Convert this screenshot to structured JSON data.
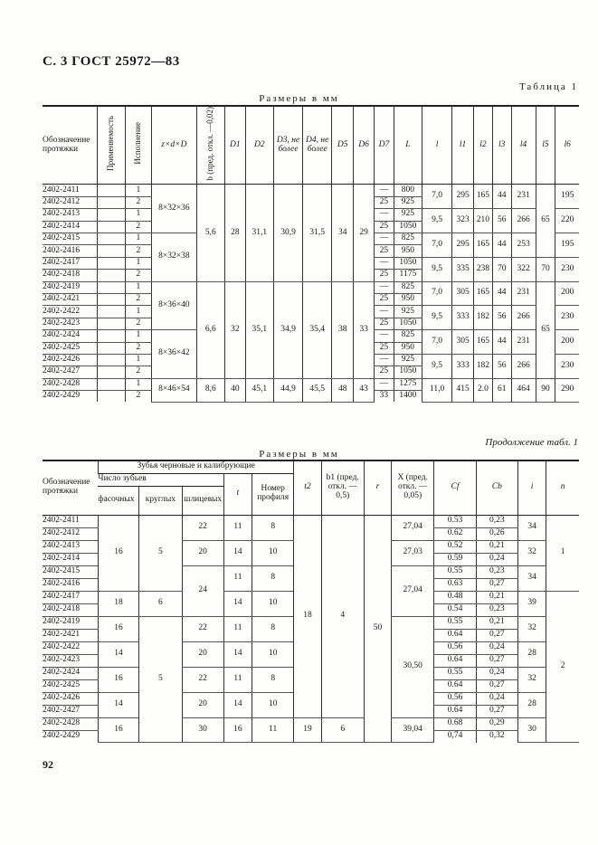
{
  "header": {
    "title": "С. 3 ГОСТ 25972—83",
    "table_label": "Таблица 1",
    "units": "Размеры в мм",
    "continuation": "Продолжение табл. 1",
    "page_number": "92"
  },
  "table1": {
    "headers": [
      "Обозначение протяжки",
      "Применяемость",
      "Исполнение",
      "z×d×D",
      "b (пред. откл. —0,02)",
      "D1",
      "D2",
      "D3, не более",
      "D4, не более",
      "D5",
      "D6",
      "D7",
      "L",
      "l",
      "l1",
      "l2",
      "l3",
      "l4",
      "l5",
      "l6"
    ],
    "columns": [
      [
        [
          "2402-2411",
          1
        ],
        [
          "2402-2412",
          1
        ],
        [
          "2402-2413",
          1
        ],
        [
          "2402-2414",
          1
        ],
        [
          "2402-2415",
          1
        ],
        [
          "2402-2416",
          1
        ],
        [
          "2402-2417",
          1
        ],
        [
          "2402-2418",
          1
        ],
        [
          "2402-2419",
          1
        ],
        [
          "2402-2421",
          1
        ],
        [
          "2402-2422",
          1
        ],
        [
          "2402-2423",
          1
        ],
        [
          "2402-2424",
          1
        ],
        [
          "2402-2425",
          1
        ],
        [
          "2402-2426",
          1
        ],
        [
          "2402-2427",
          1
        ],
        [
          "2402-2428",
          1
        ],
        [
          "2402-2429",
          1
        ]
      ],
      [
        [
          "",
          1
        ],
        [
          "",
          1
        ],
        [
          "",
          1
        ],
        [
          "",
          1
        ],
        [
          "",
          1
        ],
        [
          "",
          1
        ],
        [
          "",
          1
        ],
        [
          "",
          1
        ],
        [
          "",
          1
        ],
        [
          "",
          1
        ],
        [
          "",
          1
        ],
        [
          "",
          1
        ],
        [
          "",
          1
        ],
        [
          "",
          1
        ],
        [
          "",
          1
        ],
        [
          "",
          1
        ],
        [
          "",
          1
        ],
        [
          "",
          1
        ]
      ],
      [
        [
          "1",
          1
        ],
        [
          "2",
          1
        ],
        [
          "1",
          1
        ],
        [
          "2",
          1
        ],
        [
          "1",
          1
        ],
        [
          "2",
          1
        ],
        [
          "1",
          1
        ],
        [
          "2",
          1
        ],
        [
          "1",
          1
        ],
        [
          "2",
          1
        ],
        [
          "1",
          1
        ],
        [
          "2",
          1
        ],
        [
          "1",
          1
        ],
        [
          "2",
          1
        ],
        [
          "1",
          1
        ],
        [
          "2",
          1
        ],
        [
          "1",
          1
        ],
        [
          "2",
          1
        ]
      ],
      [
        [
          "8×32×36",
          4
        ],
        [
          "8×32×38",
          4
        ],
        [
          "8×36×40",
          4
        ],
        [
          "8×36×42",
          4
        ],
        [
          "8×46×54",
          2
        ]
      ],
      [
        [
          "5,6",
          8
        ],
        [
          "6,6",
          8
        ],
        [
          "8,6",
          2
        ]
      ],
      [
        [
          "28",
          8
        ],
        [
          "32",
          8
        ],
        [
          "40",
          2
        ]
      ],
      [
        [
          "31,1",
          8
        ],
        [
          "35,1",
          8
        ],
        [
          "45,1",
          2
        ]
      ],
      [
        [
          "30,9",
          8
        ],
        [
          "34,9",
          8
        ],
        [
          "44,9",
          2
        ]
      ],
      [
        [
          "31,5",
          8
        ],
        [
          "35,4",
          8
        ],
        [
          "45,5",
          2
        ]
      ],
      [
        [
          "34",
          8
        ],
        [
          "38",
          8
        ],
        [
          "48",
          2
        ]
      ],
      [
        [
          "29",
          8
        ],
        [
          "33",
          8
        ],
        [
          "43",
          2
        ]
      ],
      [
        [
          "—",
          1
        ],
        [
          "25",
          1
        ],
        [
          "—",
          1
        ],
        [
          "25",
          1
        ],
        [
          "—",
          1
        ],
        [
          "25",
          1
        ],
        [
          "—",
          1
        ],
        [
          "25",
          1
        ],
        [
          "—",
          1
        ],
        [
          "25",
          1
        ],
        [
          "—",
          1
        ],
        [
          "25",
          1
        ],
        [
          "—",
          1
        ],
        [
          "25",
          1
        ],
        [
          "—",
          1
        ],
        [
          "25",
          1
        ],
        [
          "—",
          1
        ],
        [
          "33",
          1
        ]
      ],
      [
        [
          "800",
          1
        ],
        [
          "925",
          1
        ],
        [
          "925",
          1
        ],
        [
          "1050",
          1
        ],
        [
          "825",
          1
        ],
        [
          "950",
          1
        ],
        [
          "1050",
          1
        ],
        [
          "1175",
          1
        ],
        [
          "825",
          1
        ],
        [
          "950",
          1
        ],
        [
          "925",
          1
        ],
        [
          "1050",
          1
        ],
        [
          "825",
          1
        ],
        [
          "950",
          1
        ],
        [
          "925",
          1
        ],
        [
          "1050",
          1
        ],
        [
          "1275",
          1
        ],
        [
          "1400",
          1
        ]
      ],
      [
        [
          "7,0",
          2
        ],
        [
          "9,5",
          2
        ],
        [
          "7,0",
          2
        ],
        [
          "9,5",
          2
        ],
        [
          "7,0",
          2
        ],
        [
          "9,5",
          2
        ],
        [
          "7,0",
          2
        ],
        [
          "9,5",
          2
        ],
        [
          "11,0",
          2
        ]
      ],
      [
        [
          "295",
          2
        ],
        [
          "323",
          2
        ],
        [
          "295",
          2
        ],
        [
          "335",
          2
        ],
        [
          "305",
          2
        ],
        [
          "333",
          2
        ],
        [
          "305",
          2
        ],
        [
          "333",
          2
        ],
        [
          "415",
          2
        ]
      ],
      [
        [
          "165",
          2
        ],
        [
          "210",
          2
        ],
        [
          "165",
          2
        ],
        [
          "238",
          2
        ],
        [
          "165",
          2
        ],
        [
          "182",
          2
        ],
        [
          "165",
          2
        ],
        [
          "182",
          2
        ],
        [
          "2.0",
          2
        ]
      ],
      [
        [
          "44",
          2
        ],
        [
          "56",
          2
        ],
        [
          "44",
          2
        ],
        [
          "70",
          2
        ],
        [
          "44",
          2
        ],
        [
          "56",
          2
        ],
        [
          "44",
          2
        ],
        [
          "56",
          2
        ],
        [
          "61",
          2
        ]
      ],
      [
        [
          "231",
          2
        ],
        [
          "266",
          2
        ],
        [
          "253",
          2
        ],
        [
          "322",
          2
        ],
        [
          "231",
          2
        ],
        [
          "266",
          2
        ],
        [
          "231",
          2
        ],
        [
          "266",
          2
        ],
        [
          "464",
          2
        ]
      ],
      [
        [
          "65",
          6
        ],
        [
          "70",
          2
        ],
        [
          "65",
          8
        ],
        [
          "90",
          2
        ]
      ],
      [
        [
          "195",
          2
        ],
        [
          "220",
          2
        ],
        [
          "195",
          2
        ],
        [
          "230",
          2
        ],
        [
          "200",
          2
        ],
        [
          "230",
          2
        ],
        [
          "200",
          2
        ],
        [
          "230",
          2
        ],
        [
          "290",
          2
        ]
      ]
    ]
  },
  "table2": {
    "headers": {
      "designation": "Обозначение протяжки",
      "group": "Зубья черновые и калибрующие",
      "teeth_count": "Число зубьев",
      "chamfer": "фасочных",
      "round": "круглых",
      "spline": "шлицевых",
      "t": "t",
      "profile": "Номер профиля",
      "t2": "t2",
      "b1": "b1 (пред. откл. —0,5)",
      "r": "r",
      "X": "X (пред. откл. —0,05)",
      "Cf": "Cf",
      "Cb": "Cb",
      "i": "i",
      "n": "n"
    },
    "columns": [
      [
        [
          "2402-2411",
          1
        ],
        [
          "2402-2412",
          1
        ],
        [
          "2402-2413",
          1
        ],
        [
          "2402-2414",
          1
        ],
        [
          "2402-2415",
          1
        ],
        [
          "2402-2416",
          1
        ],
        [
          "2402-2417",
          1
        ],
        [
          "2402-2418",
          1
        ],
        [
          "2402-2419",
          1
        ],
        [
          "2402-2421",
          1
        ],
        [
          "2402-2422",
          1
        ],
        [
          "2402-2423",
          1
        ],
        [
          "2402-2424",
          1
        ],
        [
          "2402-2425",
          1
        ],
        [
          "2402-2426",
          1
        ],
        [
          "2402-2427",
          1
        ],
        [
          "2402-2428",
          1
        ],
        [
          "2402-2429",
          1
        ]
      ],
      [
        [
          "16",
          6
        ],
        [
          "18",
          2
        ],
        [
          "16",
          2
        ],
        [
          "14",
          2
        ],
        [
          "16",
          2
        ],
        [
          "14",
          2
        ],
        [
          "16",
          2
        ]
      ],
      [
        [
          "5",
          6
        ],
        [
          "6",
          2
        ],
        [
          "5",
          10
        ]
      ],
      [
        [
          "22",
          2
        ],
        [
          "20",
          2
        ],
        [
          "24",
          4
        ],
        [
          "22",
          2
        ],
        [
          "20",
          2
        ],
        [
          "22",
          2
        ],
        [
          "20",
          2
        ],
        [
          "30",
          2
        ]
      ],
      [
        [
          "11",
          2
        ],
        [
          "14",
          2
        ],
        [
          "11",
          2
        ],
        [
          "14",
          2
        ],
        [
          "11",
          2
        ],
        [
          "14",
          2
        ],
        [
          "11",
          2
        ],
        [
          "14",
          2
        ],
        [
          "16",
          2
        ]
      ],
      [
        [
          "8",
          2
        ],
        [
          "10",
          2
        ],
        [
          "8",
          2
        ],
        [
          "10",
          2
        ],
        [
          "8",
          2
        ],
        [
          "10",
          2
        ],
        [
          "8",
          2
        ],
        [
          "10",
          2
        ],
        [
          "11",
          2
        ]
      ],
      [
        [
          "18",
          16
        ],
        [
          "19",
          2
        ]
      ],
      [
        [
          "4",
          16
        ],
        [
          "6",
          2
        ]
      ],
      [
        [
          "50",
          18
        ]
      ],
      [
        [
          "27,04",
          2
        ],
        [
          "27,03",
          2
        ],
        [
          "27,04",
          4
        ],
        [
          "30,50",
          8
        ],
        [
          "39,04",
          2
        ]
      ],
      [
        [
          "0.53",
          1
        ],
        [
          "0.62",
          1
        ],
        [
          "0.52",
          1
        ],
        [
          "0.59",
          1
        ],
        [
          "0.55",
          1
        ],
        [
          "0.63",
          1
        ],
        [
          "0.48",
          1
        ],
        [
          "0.54",
          1
        ],
        [
          "0.55",
          1
        ],
        [
          "0.64",
          1
        ],
        [
          "0.56",
          1
        ],
        [
          "0.64",
          1
        ],
        [
          "0.55",
          1
        ],
        [
          "0.64",
          1
        ],
        [
          "0.56",
          1
        ],
        [
          "0.64",
          1
        ],
        [
          "0.68",
          1
        ],
        [
          "0,74",
          1
        ]
      ],
      [
        [
          "0,23",
          1
        ],
        [
          "0,26",
          1
        ],
        [
          "0,21",
          1
        ],
        [
          "0,24",
          1
        ],
        [
          "0,23",
          1
        ],
        [
          "0,27",
          1
        ],
        [
          "0,21",
          1
        ],
        [
          "0,23",
          1
        ],
        [
          "0,21",
          1
        ],
        [
          "0,27",
          1
        ],
        [
          "0,24",
          1
        ],
        [
          "0,27",
          1
        ],
        [
          "0,24",
          1
        ],
        [
          "0,27",
          1
        ],
        [
          "0,24",
          1
        ],
        [
          "0,27",
          1
        ],
        [
          "0,29",
          1
        ],
        [
          "0,32",
          1
        ]
      ],
      [
        [
          "34",
          2
        ],
        [
          "32",
          2
        ],
        [
          "34",
          2
        ],
        [
          "39",
          2
        ],
        [
          "32",
          2
        ],
        [
          "28",
          2
        ],
        [
          "32",
          2
        ],
        [
          "28",
          2
        ],
        [
          "30",
          2
        ]
      ],
      [
        [
          "1",
          6
        ],
        [
          "2",
          12
        ]
      ]
    ]
  }
}
